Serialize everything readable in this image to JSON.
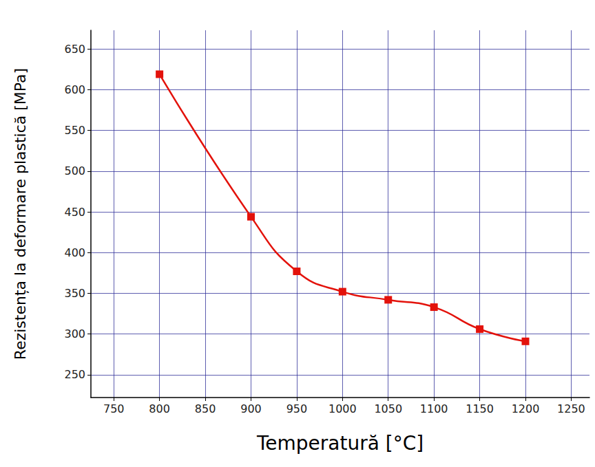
{
  "chart_data": {
    "type": "line",
    "x_label": "Temperatură [°C]",
    "y_label": "Rezistența la deformare plastică [MPa]",
    "x": [
      800,
      900,
      950,
      1000,
      1050,
      1100,
      1150,
      1200
    ],
    "values": [
      619,
      444,
      377,
      352,
      342,
      333,
      306,
      291
    ],
    "color": "#e3120b",
    "marker": "square",
    "line_style": "solid",
    "xlim": [
      725,
      1270
    ],
    "xticks": [
      750,
      800,
      850,
      900,
      950,
      1000,
      1050,
      1100,
      1150,
      1200,
      1250
    ],
    "ylim": [
      222,
      673
    ],
    "yticks": [
      250,
      300,
      350,
      400,
      450,
      500,
      550,
      600,
      650
    ],
    "grid": true
  }
}
